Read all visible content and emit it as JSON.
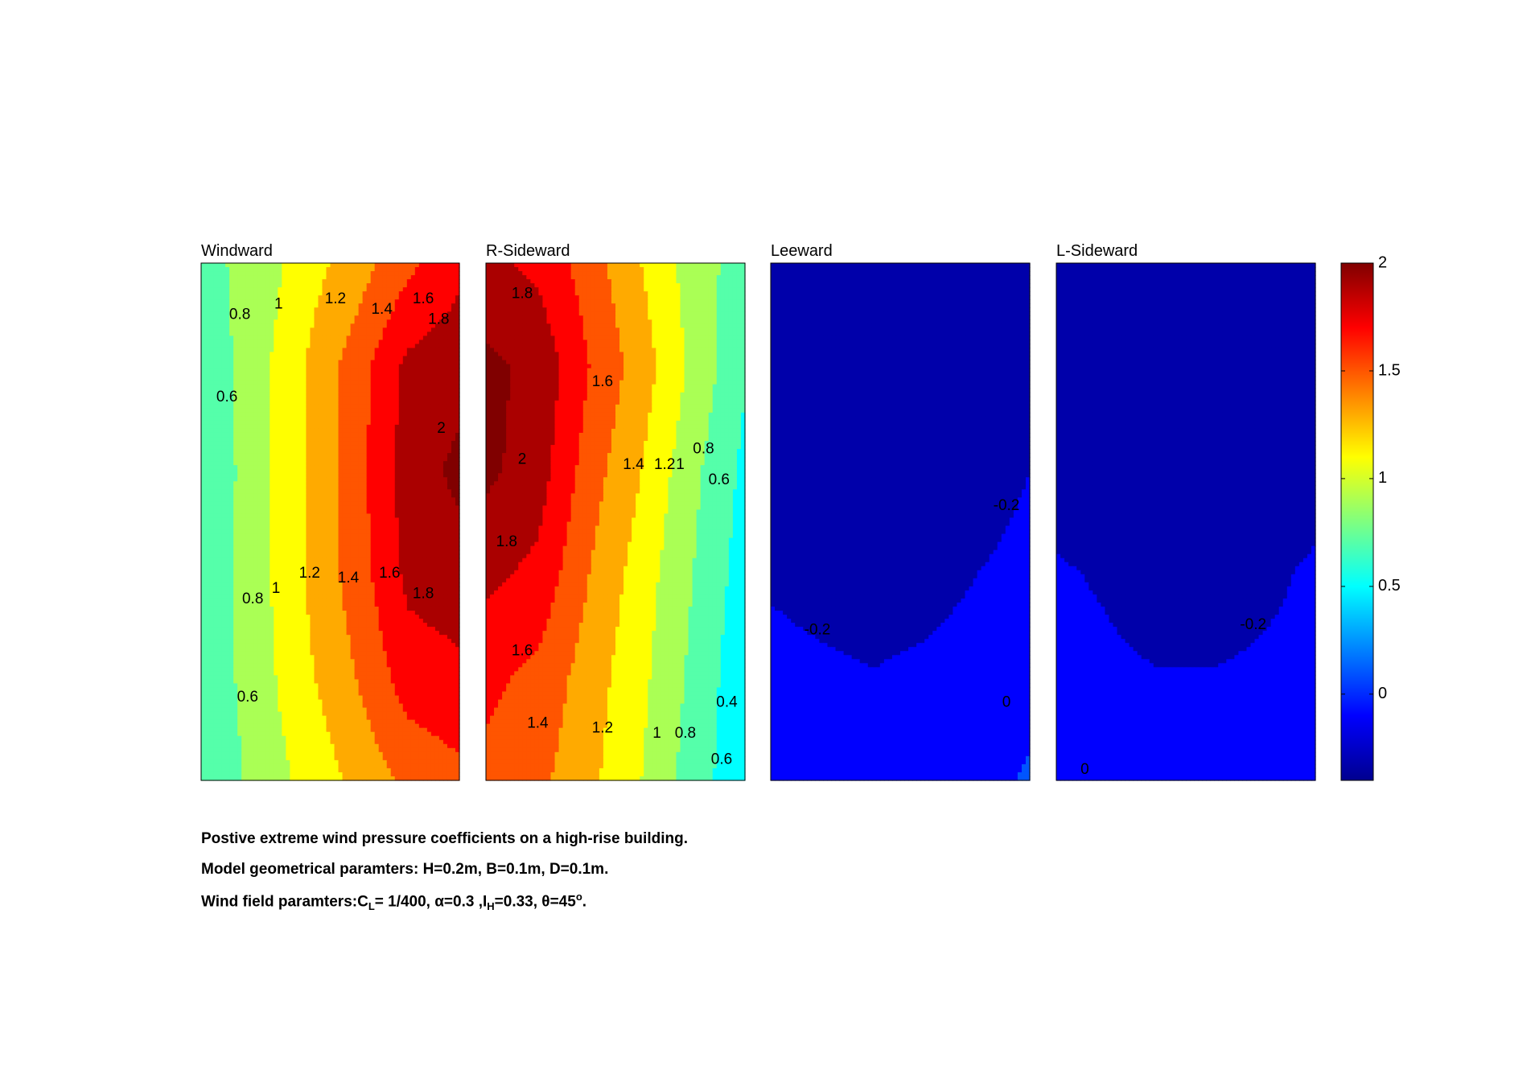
{
  "chart_data": {
    "type": "heatmap",
    "title": "",
    "colorbar": {
      "colormap": "jet",
      "range": [
        -0.4,
        2
      ],
      "ticks": [
        0,
        0.5,
        1,
        1.5,
        2
      ],
      "tick_labels": [
        "0",
        "0.5",
        "1",
        "1.5",
        "2"
      ]
    },
    "panels": [
      {
        "title": "Windward",
        "grid": [
          [
            0.75,
            0.85,
            1.1,
            1.3,
            1.55,
            1.75
          ],
          [
            0.65,
            0.9,
            1.2,
            1.5,
            1.85,
            1.92
          ],
          [
            0.6,
            0.9,
            1.2,
            1.52,
            1.9,
            2.05
          ],
          [
            0.62,
            0.9,
            1.2,
            1.5,
            1.85,
            1.92
          ],
          [
            0.65,
            0.88,
            1.15,
            1.4,
            1.7,
            1.75
          ],
          [
            0.6,
            0.85,
            1.05,
            1.25,
            1.45,
            1.55
          ]
        ],
        "contour_labels": [
          {
            "text": "0.8",
            "x": 0.15,
            "y": 0.1
          },
          {
            "text": "1",
            "x": 0.3,
            "y": 0.08
          },
          {
            "text": "1.2",
            "x": 0.52,
            "y": 0.07
          },
          {
            "text": "1.4",
            "x": 0.7,
            "y": 0.09
          },
          {
            "text": "1.6",
            "x": 0.86,
            "y": 0.07
          },
          {
            "text": "1.8",
            "x": 0.92,
            "y": 0.11
          },
          {
            "text": "0.6",
            "x": 0.1,
            "y": 0.26
          },
          {
            "text": "2",
            "x": 0.93,
            "y": 0.32
          },
          {
            "text": "0.8",
            "x": 0.2,
            "y": 0.65
          },
          {
            "text": "1",
            "x": 0.29,
            "y": 0.63
          },
          {
            "text": "1.2",
            "x": 0.42,
            "y": 0.6
          },
          {
            "text": "1.4",
            "x": 0.57,
            "y": 0.61
          },
          {
            "text": "1.6",
            "x": 0.73,
            "y": 0.6
          },
          {
            "text": "1.8",
            "x": 0.86,
            "y": 0.64
          },
          {
            "text": "0.6",
            "x": 0.18,
            "y": 0.84
          }
        ]
      },
      {
        "title": "R-Sideward",
        "grid": [
          [
            1.85,
            1.75,
            1.5,
            1.2,
            0.9,
            0.7
          ],
          [
            2.05,
            1.95,
            1.6,
            1.3,
            0.95,
            0.62
          ],
          [
            2.05,
            1.9,
            1.5,
            1.2,
            0.85,
            0.55
          ],
          [
            1.85,
            1.75,
            1.4,
            1.1,
            0.8,
            0.5
          ],
          [
            1.65,
            1.55,
            1.3,
            1.05,
            0.75,
            0.45
          ],
          [
            1.55,
            1.45,
            1.25,
            1.0,
            0.7,
            0.45
          ]
        ],
        "contour_labels": [
          {
            "text": "1.8",
            "x": 0.14,
            "y": 0.06
          },
          {
            "text": "1.6",
            "x": 0.45,
            "y": 0.23
          },
          {
            "text": "2",
            "x": 0.14,
            "y": 0.38
          },
          {
            "text": "1.4",
            "x": 0.57,
            "y": 0.39
          },
          {
            "text": "1.2",
            "x": 0.69,
            "y": 0.39
          },
          {
            "text": "1",
            "x": 0.75,
            "y": 0.39
          },
          {
            "text": "0.8",
            "x": 0.84,
            "y": 0.36
          },
          {
            "text": "0.6",
            "x": 0.9,
            "y": 0.42
          },
          {
            "text": "1.8",
            "x": 0.08,
            "y": 0.54
          },
          {
            "text": "1.6",
            "x": 0.14,
            "y": 0.75
          },
          {
            "text": "1.4",
            "x": 0.2,
            "y": 0.89
          },
          {
            "text": "1.2",
            "x": 0.45,
            "y": 0.9
          },
          {
            "text": "1",
            "x": 0.66,
            "y": 0.91
          },
          {
            "text": "0.8",
            "x": 0.77,
            "y": 0.91
          },
          {
            "text": "0.4",
            "x": 0.93,
            "y": 0.85
          },
          {
            "text": "0.6",
            "x": 0.91,
            "y": 0.96
          }
        ]
      },
      {
        "title": "Leeward",
        "grid": [
          [
            -0.36,
            -0.36,
            -0.36,
            -0.36,
            -0.36,
            -0.36
          ],
          [
            -0.36,
            -0.36,
            -0.35,
            -0.35,
            -0.34,
            -0.3
          ],
          [
            -0.35,
            -0.34,
            -0.33,
            -0.32,
            -0.28,
            -0.2
          ],
          [
            -0.22,
            -0.26,
            -0.3,
            -0.27,
            -0.2,
            -0.15
          ],
          [
            -0.15,
            -0.17,
            -0.19,
            -0.16,
            -0.12,
            -0.05
          ],
          [
            -0.12,
            -0.14,
            -0.15,
            -0.12,
            -0.05,
            0.02
          ]
        ],
        "contour_labels": [
          {
            "text": "-0.2",
            "x": 0.91,
            "y": 0.47
          },
          {
            "text": "-0.2",
            "x": 0.18,
            "y": 0.71
          },
          {
            "text": "0",
            "x": 0.91,
            "y": 0.85
          }
        ]
      },
      {
        "title": "L-Sideward",
        "grid": [
          [
            -0.37,
            -0.37,
            -0.37,
            -0.37,
            -0.37,
            -0.37
          ],
          [
            -0.37,
            -0.37,
            -0.37,
            -0.37,
            -0.37,
            -0.37
          ],
          [
            -0.28,
            -0.33,
            -0.36,
            -0.36,
            -0.33,
            -0.28
          ],
          [
            -0.18,
            -0.22,
            -0.3,
            -0.3,
            -0.24,
            -0.17
          ],
          [
            -0.15,
            -0.17,
            -0.19,
            -0.19,
            -0.17,
            -0.15
          ],
          [
            -0.05,
            -0.13,
            -0.15,
            -0.15,
            -0.14,
            -0.13
          ]
        ],
        "contour_labels": [
          {
            "text": "-0.2",
            "x": 0.76,
            "y": 0.7
          },
          {
            "text": "0",
            "x": 0.11,
            "y": 0.98
          }
        ]
      }
    ]
  },
  "caption": {
    "line1": "Postive extreme  wind pressure coefficients on a high-rise building.",
    "line2": "Model geometrical paramters: H=0.2m, B=0.1m, D=0.1m.",
    "line3_prefix": "Wind field paramters:C",
    "line3_sub_L": "L",
    "line3_after_C": "= 1/400, α=0.3 ,I",
    "line3_sub_H": "H",
    "line3_after_I": "=0.33, θ=45",
    "line3_sup": "o",
    "line3_end": "."
  }
}
